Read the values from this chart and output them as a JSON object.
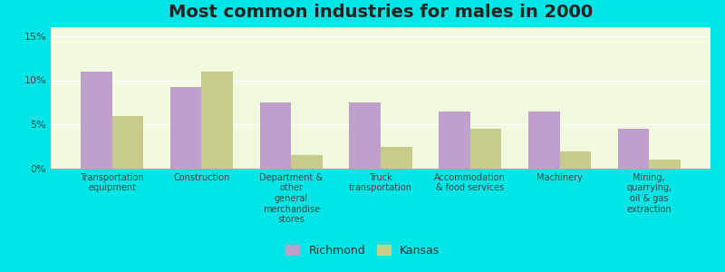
{
  "title": "Most common industries for males in 2000",
  "categories": [
    "Transportation\nequipment",
    "Construction",
    "Department &\nother\ngeneral\nmerchandise\nstores",
    "Truck\ntransportation",
    "Accommodation\n& food services",
    "Machinery",
    "Mining,\nquarrying,\noil & gas\nextraction"
  ],
  "richmond_values": [
    11.0,
    9.2,
    7.5,
    7.5,
    6.5,
    6.5,
    4.5
  ],
  "kansas_values": [
    6.0,
    11.0,
    1.5,
    2.5,
    4.5,
    2.0,
    1.0
  ],
  "richmond_color": "#bf9fcc",
  "kansas_color": "#c8cc8a",
  "plot_bg_color": "#f0fadf",
  "bg_outer": "#00e5e5",
  "ylim": [
    0,
    16
  ],
  "yticks": [
    0,
    5,
    10,
    15
  ],
  "ytick_labels": [
    "0%",
    "5%",
    "10%",
    "15%"
  ],
  "bar_width": 0.35,
  "legend_richmond": "Richmond",
  "legend_kansas": "Kansas",
  "title_fontsize": 14,
  "axis_label_fontsize": 8,
  "legend_fontsize": 9,
  "grid_color": "#ffffff"
}
